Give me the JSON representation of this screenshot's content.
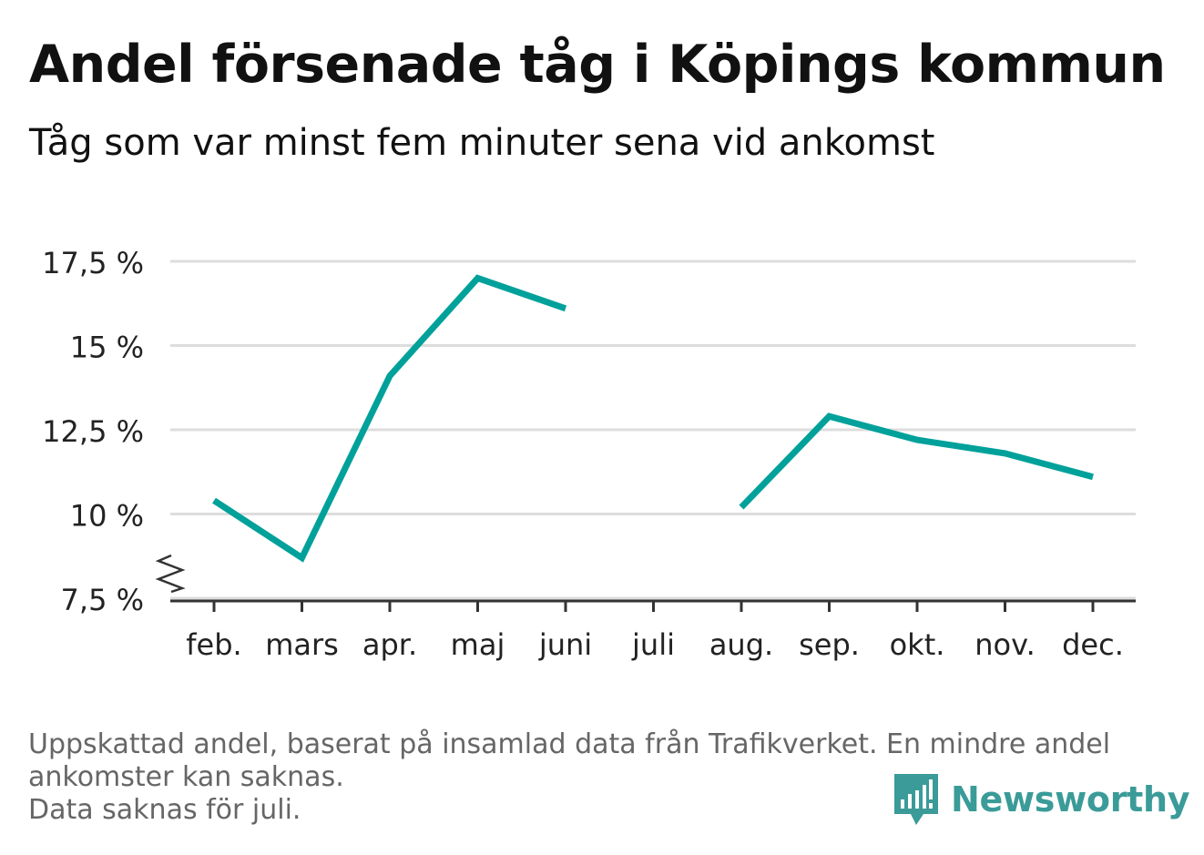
{
  "header": {
    "title": "Andel försenade tåg i Köpings kommun",
    "subtitle": "Tåg som var minst fem minuter sena vid ankomst"
  },
  "chart_data": {
    "type": "line",
    "title": "Andel försenade tåg i Köpings kommun",
    "subtitle": "Tåg som var minst fem minuter sena vid ankomst",
    "xlabel": "",
    "ylabel": "",
    "categories": [
      "feb.",
      "mars",
      "apr.",
      "maj",
      "juni",
      "juli",
      "aug.",
      "sep.",
      "okt.",
      "nov.",
      "dec."
    ],
    "series": [
      {
        "values": [
          10.4,
          8.7,
          14.1,
          17.0,
          16.1,
          null,
          10.2,
          12.9,
          12.2,
          11.8,
          11.1
        ]
      }
    ],
    "yticks": [
      7.5,
      10,
      12.5,
      15,
      17.5
    ],
    "ytick_labels": [
      "7,5 %",
      "10 %",
      "12,5 %",
      "15 %",
      "17,5 %"
    ],
    "ylim": [
      7.5,
      17.5
    ],
    "grid": true,
    "line_color": "#00a19a",
    "axis_break": true
  },
  "footnote": {
    "lines": [
      "Uppskattad andel, baserat på insamlad data från Trafikverket. En mindre andel",
      "ankomster kan saknas.",
      "Data saknas för juli."
    ]
  },
  "brand": {
    "name": "Newsworthy",
    "icon": "newsworthy-logo-icon",
    "color": "#3a9b98"
  }
}
